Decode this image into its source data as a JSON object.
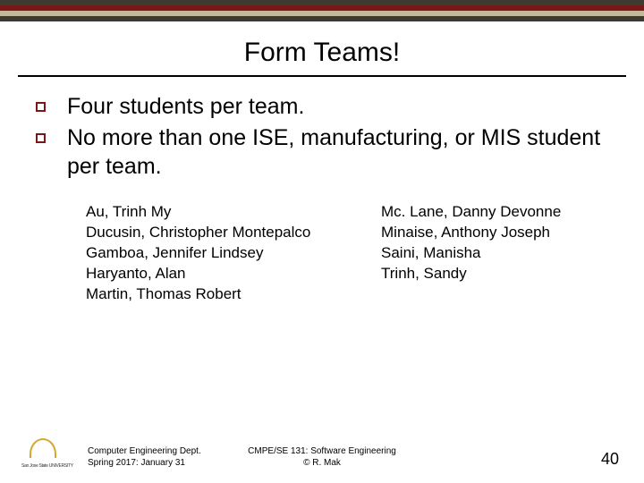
{
  "colors": {
    "bar_dark": "#3b3b2f",
    "bar_red": "#7a1818",
    "bar_tan": "#c4b896",
    "bullet_border": "#7a1818",
    "background": "#ffffff",
    "text": "#000000"
  },
  "title": "Form Teams!",
  "bullets": [
    "Four students per team.",
    "No more than one ISE, manufacturing, or MIS student per team."
  ],
  "names_col1": [
    "Au, Trinh My",
    "Ducusin, Christopher Montepalco",
    "Gamboa, Jennifer Lindsey",
    "Haryanto, Alan",
    "Martin, Thomas Robert"
  ],
  "names_col2": [
    "Mc. Lane, Danny Devonne",
    "Minaise, Anthony Joseph",
    "Saini, Manisha",
    "Trinh, Sandy"
  ],
  "footer": {
    "logo_label": "San Jose State UNIVERSITY",
    "dept_line1": "Computer Engineering Dept.",
    "dept_line2": "Spring 2017: January 31",
    "center_line1": "CMPE/SE 131: Software Engineering",
    "center_line2": "© R. Mak",
    "slide_number": "40"
  },
  "typography": {
    "title_fontsize": 30,
    "bullet_fontsize": 25,
    "names_fontsize": 17,
    "footer_fontsize": 10,
    "slidenum_fontsize": 18
  }
}
